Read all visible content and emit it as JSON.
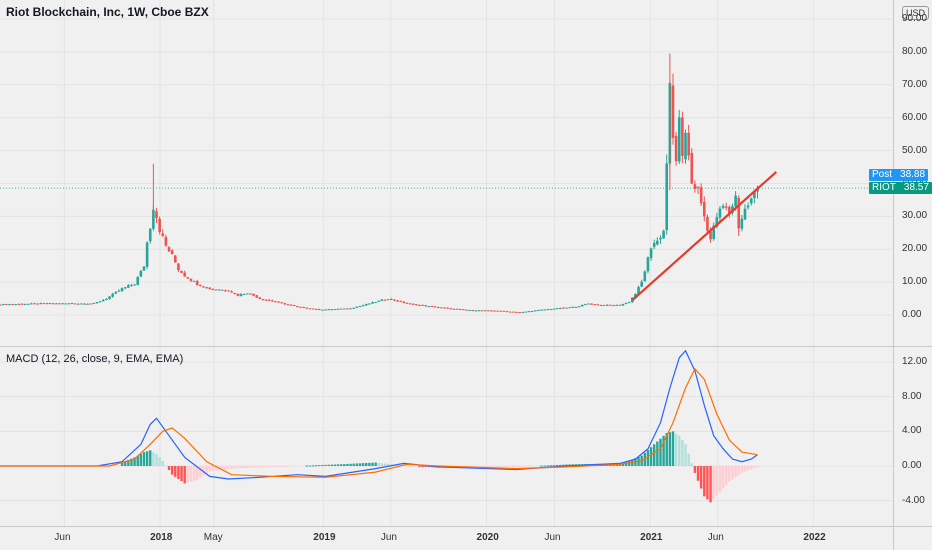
{
  "title": "Riot Blockchain, Inc, 1W, Cboe BZX",
  "currency": "USD",
  "indicator_title": "MACD (12, 26, close, 9, EMA, EMA)",
  "badges": {
    "post": {
      "label": "Post",
      "value": "38.88",
      "color": "#2196f3"
    },
    "riot": {
      "label": "RIOT",
      "value": "38.57",
      "color": "#089981"
    }
  },
  "colors": {
    "up": "#26a69a",
    "down": "#ef5350",
    "trendline": "#e8392d",
    "macd": "#2962ff",
    "signal": "#ff6d00",
    "hist_up_strong": "#26a69a",
    "hist_up_weak": "#b2dfdb",
    "hist_down_strong": "#ff5252",
    "hist_down_weak": "#ffcdd2"
  },
  "chart_data": [
    {
      "type": "candlestick",
      "title": "Riot Blockchain, Inc, 1W, Cboe BZX",
      "ylim": [
        -5,
        95
      ],
      "y_ticks": [
        "0.00",
        "10.00",
        "20.00",
        "30.00",
        "40.00",
        "50.00",
        "60.00",
        "70.00",
        "80.00",
        "90.00"
      ],
      "x_ticks": [
        {
          "label": "Jun",
          "date": "2017-06-01",
          "year": false
        },
        {
          "label": "2018",
          "date": "2018-01-01",
          "year": true
        },
        {
          "label": "May",
          "date": "2018-05-01",
          "year": false
        },
        {
          "label": "2019",
          "date": "2019-01-01",
          "year": true
        },
        {
          "label": "Jun",
          "date": "2019-06-01",
          "year": false
        },
        {
          "label": "2020",
          "date": "2020-01-01",
          "year": true
        },
        {
          "label": "Jun",
          "date": "2020-06-01",
          "year": false
        },
        {
          "label": "2021",
          "date": "2021-01-01",
          "year": true
        },
        {
          "label": "Jun",
          "date": "2021-06-01",
          "year": false
        },
        {
          "label": "2022",
          "date": "2022-01-01",
          "year": true
        }
      ],
      "last_price": 38.57,
      "post_price": 38.88,
      "trendline": [
        {
          "date": "2020-11-22",
          "price": 4.5
        },
        {
          "date": "2021-10-10",
          "price": 43.5
        }
      ],
      "close_path": [
        [
          "2017-01-08",
          3.2
        ],
        [
          "2017-04-23",
          3.5
        ],
        [
          "2017-08-06",
          3.5
        ],
        [
          "2017-09-03",
          5.0
        ],
        [
          "2017-10-08",
          8.0
        ],
        [
          "2017-11-05",
          9.5
        ],
        [
          "2017-11-26",
          15.0
        ],
        [
          "2017-12-03",
          22.0
        ],
        [
          "2017-12-10",
          27.0
        ],
        [
          "2017-12-17",
          33.0
        ],
        [
          "2017-12-24",
          30.0
        ],
        [
          "2017-12-31",
          26.0
        ],
        [
          "2018-01-14",
          21.0
        ],
        [
          "2018-01-28",
          18.0
        ],
        [
          "2018-02-11",
          14.0
        ],
        [
          "2018-02-25",
          12.0
        ],
        [
          "2018-03-25",
          9.5
        ],
        [
          "2018-04-22",
          8.0
        ],
        [
          "2018-06-03",
          7.5
        ],
        [
          "2018-06-24",
          6.0
        ],
        [
          "2018-07-15",
          6.8
        ],
        [
          "2018-08-12",
          5.0
        ],
        [
          "2018-09-16",
          4.0
        ],
        [
          "2018-11-04",
          2.5
        ],
        [
          "2018-12-23",
          1.6
        ],
        [
          "2019-03-03",
          2.0
        ],
        [
          "2019-04-28",
          4.0
        ],
        [
          "2019-05-26",
          5.0
        ],
        [
          "2019-07-07",
          3.5
        ],
        [
          "2019-09-01",
          2.5
        ],
        [
          "2019-11-17",
          1.5
        ],
        [
          "2020-01-26",
          1.3
        ],
        [
          "2020-03-15",
          0.8
        ],
        [
          "2020-05-03",
          1.6
        ],
        [
          "2020-07-19",
          2.5
        ],
        [
          "2020-08-16",
          3.5
        ],
        [
          "2020-09-13",
          3.0
        ],
        [
          "2020-10-25",
          3.0
        ],
        [
          "2020-11-15",
          4.0
        ],
        [
          "2020-11-29",
          6.5
        ],
        [
          "2020-12-13",
          10.0
        ],
        [
          "2020-12-27",
          17.0
        ],
        [
          "2021-01-10",
          22.0
        ],
        [
          "2021-01-31",
          25.0
        ],
        [
          "2021-02-07",
          45.0
        ],
        [
          "2021-02-14",
          70.0
        ],
        [
          "2021-02-21",
          55.0
        ],
        [
          "2021-02-28",
          45.0
        ],
        [
          "2021-03-07",
          62.0
        ],
        [
          "2021-03-14",
          47.0
        ],
        [
          "2021-03-21",
          56.0
        ],
        [
          "2021-04-04",
          40.0
        ],
        [
          "2021-04-18",
          38.0
        ],
        [
          "2021-05-02",
          30.0
        ],
        [
          "2021-05-16",
          23.0
        ],
        [
          "2021-05-30",
          30.0
        ],
        [
          "2021-06-13",
          33.0
        ],
        [
          "2021-06-27",
          31.0
        ],
        [
          "2021-07-11",
          36.0
        ],
        [
          "2021-07-18",
          27.0
        ],
        [
          "2021-08-01",
          32.0
        ],
        [
          "2021-08-15",
          35.0
        ],
        [
          "2021-08-29",
          38.57
        ]
      ],
      "spikes": [
        {
          "date": "2017-12-17",
          "low": 29.0,
          "high": 46.0
        },
        {
          "date": "2021-02-14",
          "low": 38.0,
          "high": 79.5
        },
        {
          "date": "2021-07-18",
          "low": 24.0,
          "high": 31.0
        }
      ]
    },
    {
      "type": "line",
      "title": "MACD (12, 26, close, 9, EMA, EMA)",
      "ylim": [
        -6,
        14
      ],
      "y_ticks": [
        "-4.00",
        "0.00",
        "4.00",
        "8.00",
        "12.00"
      ],
      "series": [
        {
          "key": "macd",
          "points": [
            [
              "2017-01-08",
              0.0
            ],
            [
              "2017-08-13",
              0.0
            ],
            [
              "2017-10-08",
              0.5
            ],
            [
              "2017-11-19",
              2.5
            ],
            [
              "2017-12-10",
              4.8
            ],
            [
              "2017-12-24",
              5.5
            ],
            [
              "2018-01-14",
              4.0
            ],
            [
              "2018-02-25",
              1.0
            ],
            [
              "2018-04-22",
              -1.2
            ],
            [
              "2018-06-03",
              -1.5
            ],
            [
              "2018-08-12",
              -1.3
            ],
            [
              "2018-11-04",
              -1.0
            ],
            [
              "2019-01-06",
              -1.2
            ],
            [
              "2019-04-28",
              -0.3
            ],
            [
              "2019-06-30",
              0.3
            ],
            [
              "2019-09-15",
              -0.1
            ],
            [
              "2020-03-08",
              -0.4
            ],
            [
              "2020-06-28",
              0.0
            ],
            [
              "2020-10-25",
              0.3
            ],
            [
              "2020-11-29",
              0.8
            ],
            [
              "2020-12-27",
              2.0
            ],
            [
              "2021-01-24",
              5.0
            ],
            [
              "2021-02-14",
              9.0
            ],
            [
              "2021-03-07",
              12.5
            ],
            [
              "2021-03-21",
              13.3
            ],
            [
              "2021-04-11",
              11.0
            ],
            [
              "2021-05-02",
              7.0
            ],
            [
              "2021-05-23",
              3.5
            ],
            [
              "2021-06-13",
              2.0
            ],
            [
              "2021-07-04",
              0.8
            ],
            [
              "2021-07-25",
              0.5
            ],
            [
              "2021-08-15",
              0.8
            ],
            [
              "2021-08-29",
              1.3
            ]
          ]
        },
        {
          "key": "signal",
          "points": [
            [
              "2017-01-08",
              0.0
            ],
            [
              "2017-09-10",
              0.0
            ],
            [
              "2017-11-05",
              0.8
            ],
            [
              "2017-12-10",
              2.5
            ],
            [
              "2018-01-07",
              4.0
            ],
            [
              "2018-01-28",
              4.4
            ],
            [
              "2018-02-25",
              3.2
            ],
            [
              "2018-04-15",
              0.5
            ],
            [
              "2018-06-10",
              -1.0
            ],
            [
              "2018-09-09",
              -1.2
            ],
            [
              "2019-01-06",
              -1.3
            ],
            [
              "2019-04-28",
              -0.7
            ],
            [
              "2019-07-07",
              0.2
            ],
            [
              "2019-09-15",
              0.0
            ],
            [
              "2020-03-08",
              -0.3
            ],
            [
              "2020-06-28",
              -0.1
            ],
            [
              "2020-10-25",
              0.2
            ],
            [
              "2020-12-13",
              0.6
            ],
            [
              "2021-01-24",
              2.0
            ],
            [
              "2021-02-21",
              5.0
            ],
            [
              "2021-03-21",
              9.0
            ],
            [
              "2021-04-11",
              11.2
            ],
            [
              "2021-05-02",
              10.0
            ],
            [
              "2021-05-30",
              6.0
            ],
            [
              "2021-06-27",
              3.0
            ],
            [
              "2021-07-25",
              1.6
            ],
            [
              "2021-08-29",
              1.3
            ]
          ]
        }
      ],
      "histogram": [
        [
          "2017-10-08",
          0.4
        ],
        [
          "2017-11-05",
          1.0
        ],
        [
          "2017-11-26",
          1.6
        ],
        [
          "2017-12-10",
          1.8
        ],
        [
          "2017-12-24",
          1.4
        ],
        [
          "2018-01-07",
          0.6
        ],
        [
          "2018-01-28",
          -1.0
        ],
        [
          "2018-02-25",
          -2.0
        ],
        [
          "2018-03-25",
          -1.6
        ],
        [
          "2018-04-22",
          -0.6
        ],
        [
          "2018-06-10",
          -0.3
        ],
        [
          "2018-09-16",
          -0.1
        ],
        [
          "2019-02-10",
          0.2
        ],
        [
          "2019-04-28",
          0.4
        ],
        [
          "2019-06-02",
          0.2
        ],
        [
          "2019-09-15",
          -0.2
        ],
        [
          "2020-03-08",
          -0.1
        ],
        [
          "2020-07-12",
          0.2
        ],
        [
          "2020-11-01",
          0.3
        ],
        [
          "2020-12-13",
          1.2
        ],
        [
          "2021-01-10",
          2.5
        ],
        [
          "2021-02-07",
          3.8
        ],
        [
          "2021-02-21",
          4.0
        ],
        [
          "2021-03-07",
          3.5
        ],
        [
          "2021-03-21",
          2.5
        ],
        [
          "2021-04-11",
          -0.8
        ],
        [
          "2021-05-02",
          -3.5
        ],
        [
          "2021-05-16",
          -4.2
        ],
        [
          "2021-06-06",
          -3.0
        ],
        [
          "2021-06-27",
          -1.8
        ],
        [
          "2021-07-25",
          -0.8
        ],
        [
          "2021-08-29",
          -0.1
        ]
      ]
    }
  ]
}
